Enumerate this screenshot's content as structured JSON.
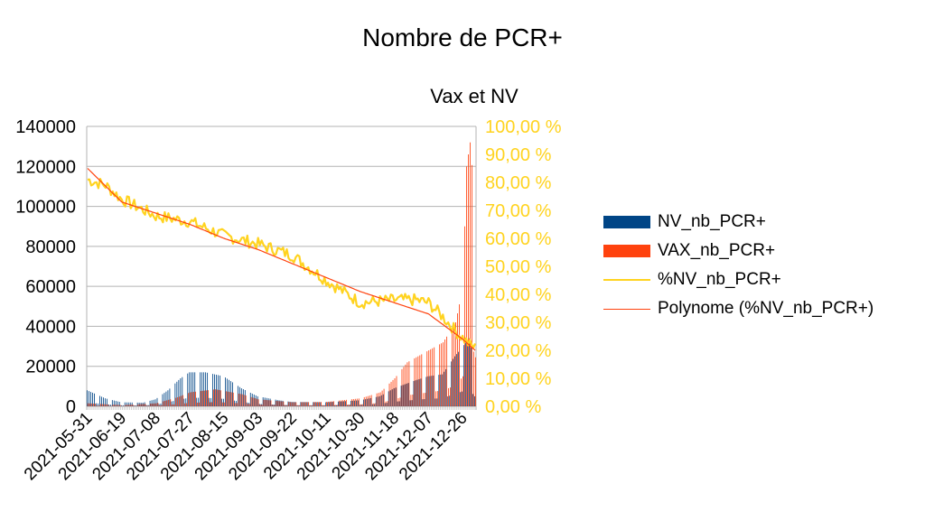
{
  "title": "Nombre de PCR+",
  "subtitle": "Vax et NV",
  "colors": {
    "nv": "#004586",
    "vax": "#ff420e",
    "pct": "#ffd320",
    "poly": "#ff420e",
    "grid": "#b3b3b3"
  },
  "legend": [
    {
      "label": "NV_nb_PCR+",
      "color": "#004586",
      "kind": "bar"
    },
    {
      "label": "VAX_nb_PCR+",
      "color": "#ff420e",
      "kind": "bar"
    },
    {
      "label": "%NV_nb_PCR+",
      "color": "#ffd320",
      "kind": "line"
    },
    {
      "label": "Polynome (%NV_nb_PCR+)",
      "color": "#ff420e",
      "kind": "thin"
    }
  ],
  "chart_data": {
    "type": "bar",
    "title": "Nombre de PCR+",
    "subtitle": "Vax et NV",
    "x_start": "2021-05-31",
    "x_end": "2022-01-02",
    "x_tick_labels": [
      "2021-05-31",
      "2021-06-19",
      "2021-07-08",
      "2021-07-27",
      "2021-08-15",
      "2021-09-03",
      "2021-09-22",
      "2021-10-11",
      "2021-10-30",
      "2021-11-18",
      "2021-12-07",
      "2021-12-26"
    ],
    "y_left": {
      "min": 0,
      "max": 140000,
      "step": 20000,
      "tick_labels": [
        "0",
        "20000",
        "40000",
        "60000",
        "80000",
        "100000",
        "120000",
        "140000"
      ]
    },
    "y_right": {
      "min": 0,
      "max": 100,
      "step": 10,
      "tick_labels": [
        "0,00 %",
        "10,00 %",
        "20,00 %",
        "30,00 %",
        "40,00 %",
        "50,00 %",
        "60,00 %",
        "70,00 %",
        "80,00 %",
        "90,00 %",
        "100,00 %"
      ]
    },
    "grid": true,
    "legend_position": "right",
    "series": [
      {
        "name": "NV_nb_PCR+",
        "type": "bar",
        "axis": "left",
        "keypoints": [
          [
            "2021-05-31",
            8000
          ],
          [
            "2021-06-10",
            4000
          ],
          [
            "2021-06-19",
            2000
          ],
          [
            "2021-07-01",
            1800
          ],
          [
            "2021-07-08",
            3500
          ],
          [
            "2021-07-15",
            8000
          ],
          [
            "2021-07-22",
            14000
          ],
          [
            "2021-07-27",
            17000
          ],
          [
            "2021-08-05",
            17000
          ],
          [
            "2021-08-15",
            15000
          ],
          [
            "2021-08-25",
            9000
          ],
          [
            "2021-09-03",
            5000
          ],
          [
            "2021-09-15",
            3000
          ],
          [
            "2021-09-22",
            2200
          ],
          [
            "2021-10-11",
            2000
          ],
          [
            "2021-10-30",
            3000
          ],
          [
            "2021-11-10",
            5000
          ],
          [
            "2021-11-18",
            9000
          ],
          [
            "2021-11-30",
            13000
          ],
          [
            "2021-12-07",
            15000
          ],
          [
            "2021-12-15",
            16000
          ],
          [
            "2021-12-22",
            25000
          ],
          [
            "2021-12-30",
            34000
          ],
          [
            "2022-01-02",
            20000
          ]
        ]
      },
      {
        "name": "VAX_nb_PCR+",
        "type": "bar",
        "axis": "left",
        "keypoints": [
          [
            "2021-05-31",
            1500
          ],
          [
            "2021-06-19",
            600
          ],
          [
            "2021-07-08",
            1500
          ],
          [
            "2021-07-20",
            4500
          ],
          [
            "2021-07-27",
            7000
          ],
          [
            "2021-08-10",
            8500
          ],
          [
            "2021-08-25",
            6000
          ],
          [
            "2021-09-03",
            3500
          ],
          [
            "2021-09-22",
            2000
          ],
          [
            "2021-10-11",
            2200
          ],
          [
            "2021-10-30",
            4000
          ],
          [
            "2021-11-10",
            7000
          ],
          [
            "2021-11-18",
            14000
          ],
          [
            "2021-11-25",
            22000
          ],
          [
            "2021-12-07",
            28000
          ],
          [
            "2021-12-15",
            32000
          ],
          [
            "2021-12-22",
            42000
          ],
          [
            "2021-12-26",
            60000
          ],
          [
            "2021-12-28",
            120000
          ],
          [
            "2021-12-30",
            132000
          ],
          [
            "2022-01-02",
            98000
          ]
        ]
      },
      {
        "name": "%NV_nb_PCR+",
        "type": "line",
        "axis": "right",
        "keypoints": [
          [
            "2021-05-31",
            81
          ],
          [
            "2021-06-10",
            79
          ],
          [
            "2021-06-19",
            74
          ],
          [
            "2021-07-08",
            68
          ],
          [
            "2021-07-27",
            66
          ],
          [
            "2021-08-15",
            61
          ],
          [
            "2021-09-03",
            58
          ],
          [
            "2021-09-22",
            54
          ],
          [
            "2021-10-11",
            45
          ],
          [
            "2021-10-30",
            37
          ],
          [
            "2021-11-18",
            38
          ],
          [
            "2021-11-30",
            38
          ],
          [
            "2021-12-07",
            37
          ],
          [
            "2021-12-15",
            32
          ],
          [
            "2021-12-22",
            27
          ],
          [
            "2021-12-30",
            22
          ],
          [
            "2022-01-02",
            21
          ]
        ]
      },
      {
        "name": "Polynome (%NV_nb_PCR+)",
        "type": "trendline",
        "axis": "right",
        "keypoints": [
          [
            "2021-05-31",
            85
          ],
          [
            "2021-06-19",
            73
          ],
          [
            "2021-07-08",
            69
          ],
          [
            "2021-07-27",
            65
          ],
          [
            "2021-08-15",
            60
          ],
          [
            "2021-09-03",
            56
          ],
          [
            "2021-09-22",
            51
          ],
          [
            "2021-10-11",
            46
          ],
          [
            "2021-10-30",
            41
          ],
          [
            "2021-11-18",
            37
          ],
          [
            "2021-12-07",
            33
          ],
          [
            "2021-12-26",
            24
          ],
          [
            "2022-01-02",
            20
          ]
        ]
      }
    ]
  }
}
